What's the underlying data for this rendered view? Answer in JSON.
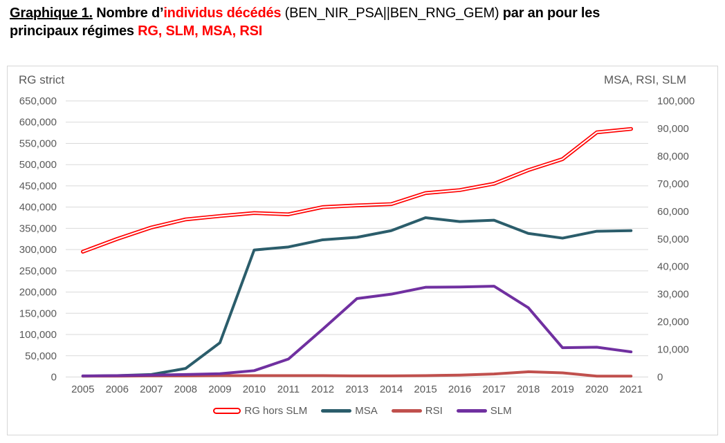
{
  "title": {
    "line1": [
      {
        "text": "Graphique 1.",
        "bold": true,
        "underline": true,
        "color": "#000000"
      },
      {
        "text": " Nombre d’",
        "bold": true,
        "underline": false,
        "color": "#000000"
      },
      {
        "text": "individus décédés",
        "bold": true,
        "underline": false,
        "color": "#ff0000"
      },
      {
        "text": " (BEN_NIR_PSA||BEN_RNG_GEM) ",
        "bold": false,
        "underline": false,
        "color": "#000000"
      },
      {
        "text": "par an pour les",
        "bold": true,
        "underline": false,
        "color": "#000000"
      }
    ],
    "line2": [
      {
        "text": "principaux régimes ",
        "bold": true,
        "underline": false,
        "color": "#000000"
      },
      {
        "text": "RG, SLM, MSA, RSI",
        "bold": true,
        "underline": false,
        "color": "#ff0000"
      }
    ]
  },
  "chart_data": {
    "type": "line",
    "x": [
      2005,
      2006,
      2007,
      2008,
      2009,
      2010,
      2011,
      2012,
      2013,
      2014,
      2015,
      2016,
      2017,
      2018,
      2019,
      2020,
      2021
    ],
    "left_axis": {
      "title": "RG strict",
      "min": 0,
      "max": 650000,
      "step": 50000
    },
    "right_axis": {
      "title": "MSA, RSI, SLM",
      "min": 0,
      "max": 100000,
      "step": 10000
    },
    "grid": true,
    "legend_position": "bottom",
    "series": [
      {
        "name": "RG hors SLM",
        "axis": "left",
        "color": "#ff0000",
        "style": "double",
        "values": [
          295000,
          325000,
          352000,
          371000,
          379000,
          386000,
          383000,
          400000,
          404000,
          407000,
          433000,
          440000,
          455000,
          487000,
          513000,
          576000,
          584000
        ]
      },
      {
        "name": "MSA",
        "axis": "right",
        "color": "#2b5d6b",
        "style": "solid",
        "values": [
          300,
          500,
          900,
          3100,
          12400,
          46000,
          47100,
          49700,
          50600,
          53000,
          57700,
          56300,
          56800,
          52000,
          50300,
          52800,
          53000
        ]
      },
      {
        "name": "RSI",
        "axis": "right",
        "color": "#c0504d",
        "style": "solid",
        "values": [
          300,
          300,
          400,
          400,
          500,
          500,
          500,
          500,
          400,
          400,
          500,
          700,
          1100,
          1900,
          1500,
          300,
          300
        ]
      },
      {
        "name": "SLM",
        "axis": "right",
        "color": "#7030a0",
        "style": "solid",
        "values": [
          400,
          500,
          700,
          900,
          1200,
          2300,
          6500,
          17300,
          28400,
          30000,
          32500,
          32600,
          32900,
          25100,
          10600,
          10800,
          9100
        ]
      }
    ],
    "colors": {
      "grid": "#d9d9d9",
      "tick_text": "#595959",
      "border": "#d6d6d6"
    }
  }
}
